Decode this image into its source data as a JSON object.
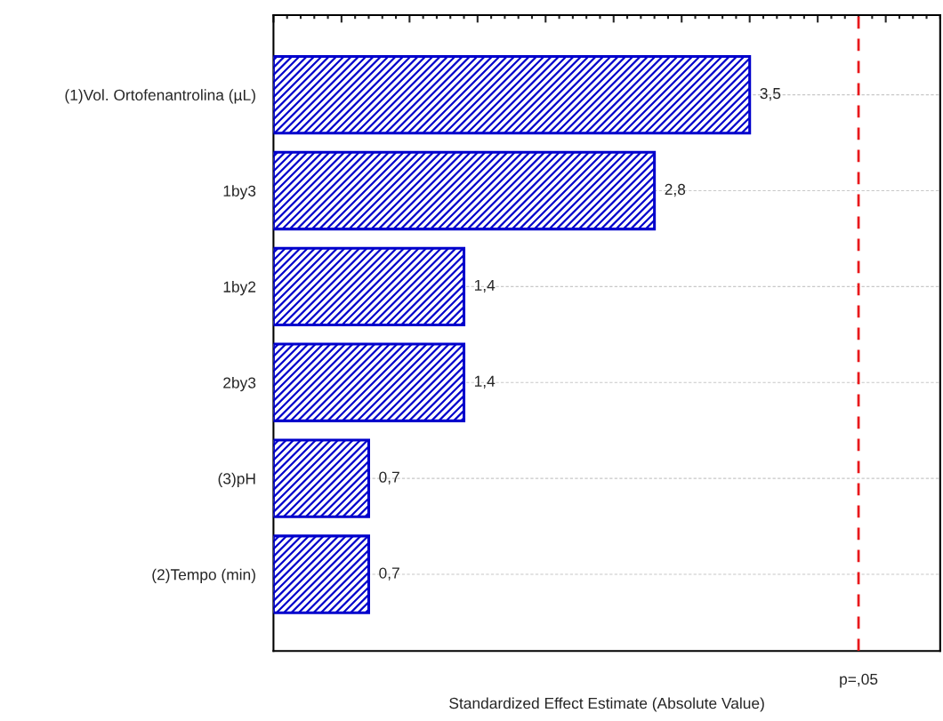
{
  "chart_data": {
    "type": "bar",
    "orientation": "horizontal",
    "xlabel": "Standardized Effect Estimate (Absolute Value)",
    "categories": [
      "(1)Vol. Ortofenantrolina (µL)",
      "1by3",
      "1by2",
      "2by3",
      "(3)pH",
      "(2)Tempo (min)"
    ],
    "values": [
      3.5,
      2.8,
      1.4,
      1.4,
      0.7,
      0.7
    ],
    "value_labels": [
      "3,5",
      "2,8",
      "1,4",
      "1,4",
      "0,7",
      "0,7"
    ],
    "color": "#0000cc",
    "xlim": [
      0,
      4.9
    ],
    "xticks": [
      {
        "value": 0,
        "label": null
      },
      {
        "value": 0.5,
        "label": null
      },
      {
        "value": 1,
        "label": null
      },
      {
        "value": 1.5,
        "label": null
      },
      {
        "value": 2,
        "label": null
      },
      {
        "value": 2.5,
        "label": null
      },
      {
        "value": 3,
        "label": null
      },
      {
        "value": 3.5,
        "label": null
      },
      {
        "value": 4,
        "label": null
      },
      {
        "value": 4.5,
        "label": null
      }
    ],
    "ref_lines": [
      {
        "axis": "x",
        "value": 4.3,
        "label": "p=,05",
        "color": "#e8191c",
        "line_style": "dashed"
      }
    ],
    "grid": "y"
  }
}
